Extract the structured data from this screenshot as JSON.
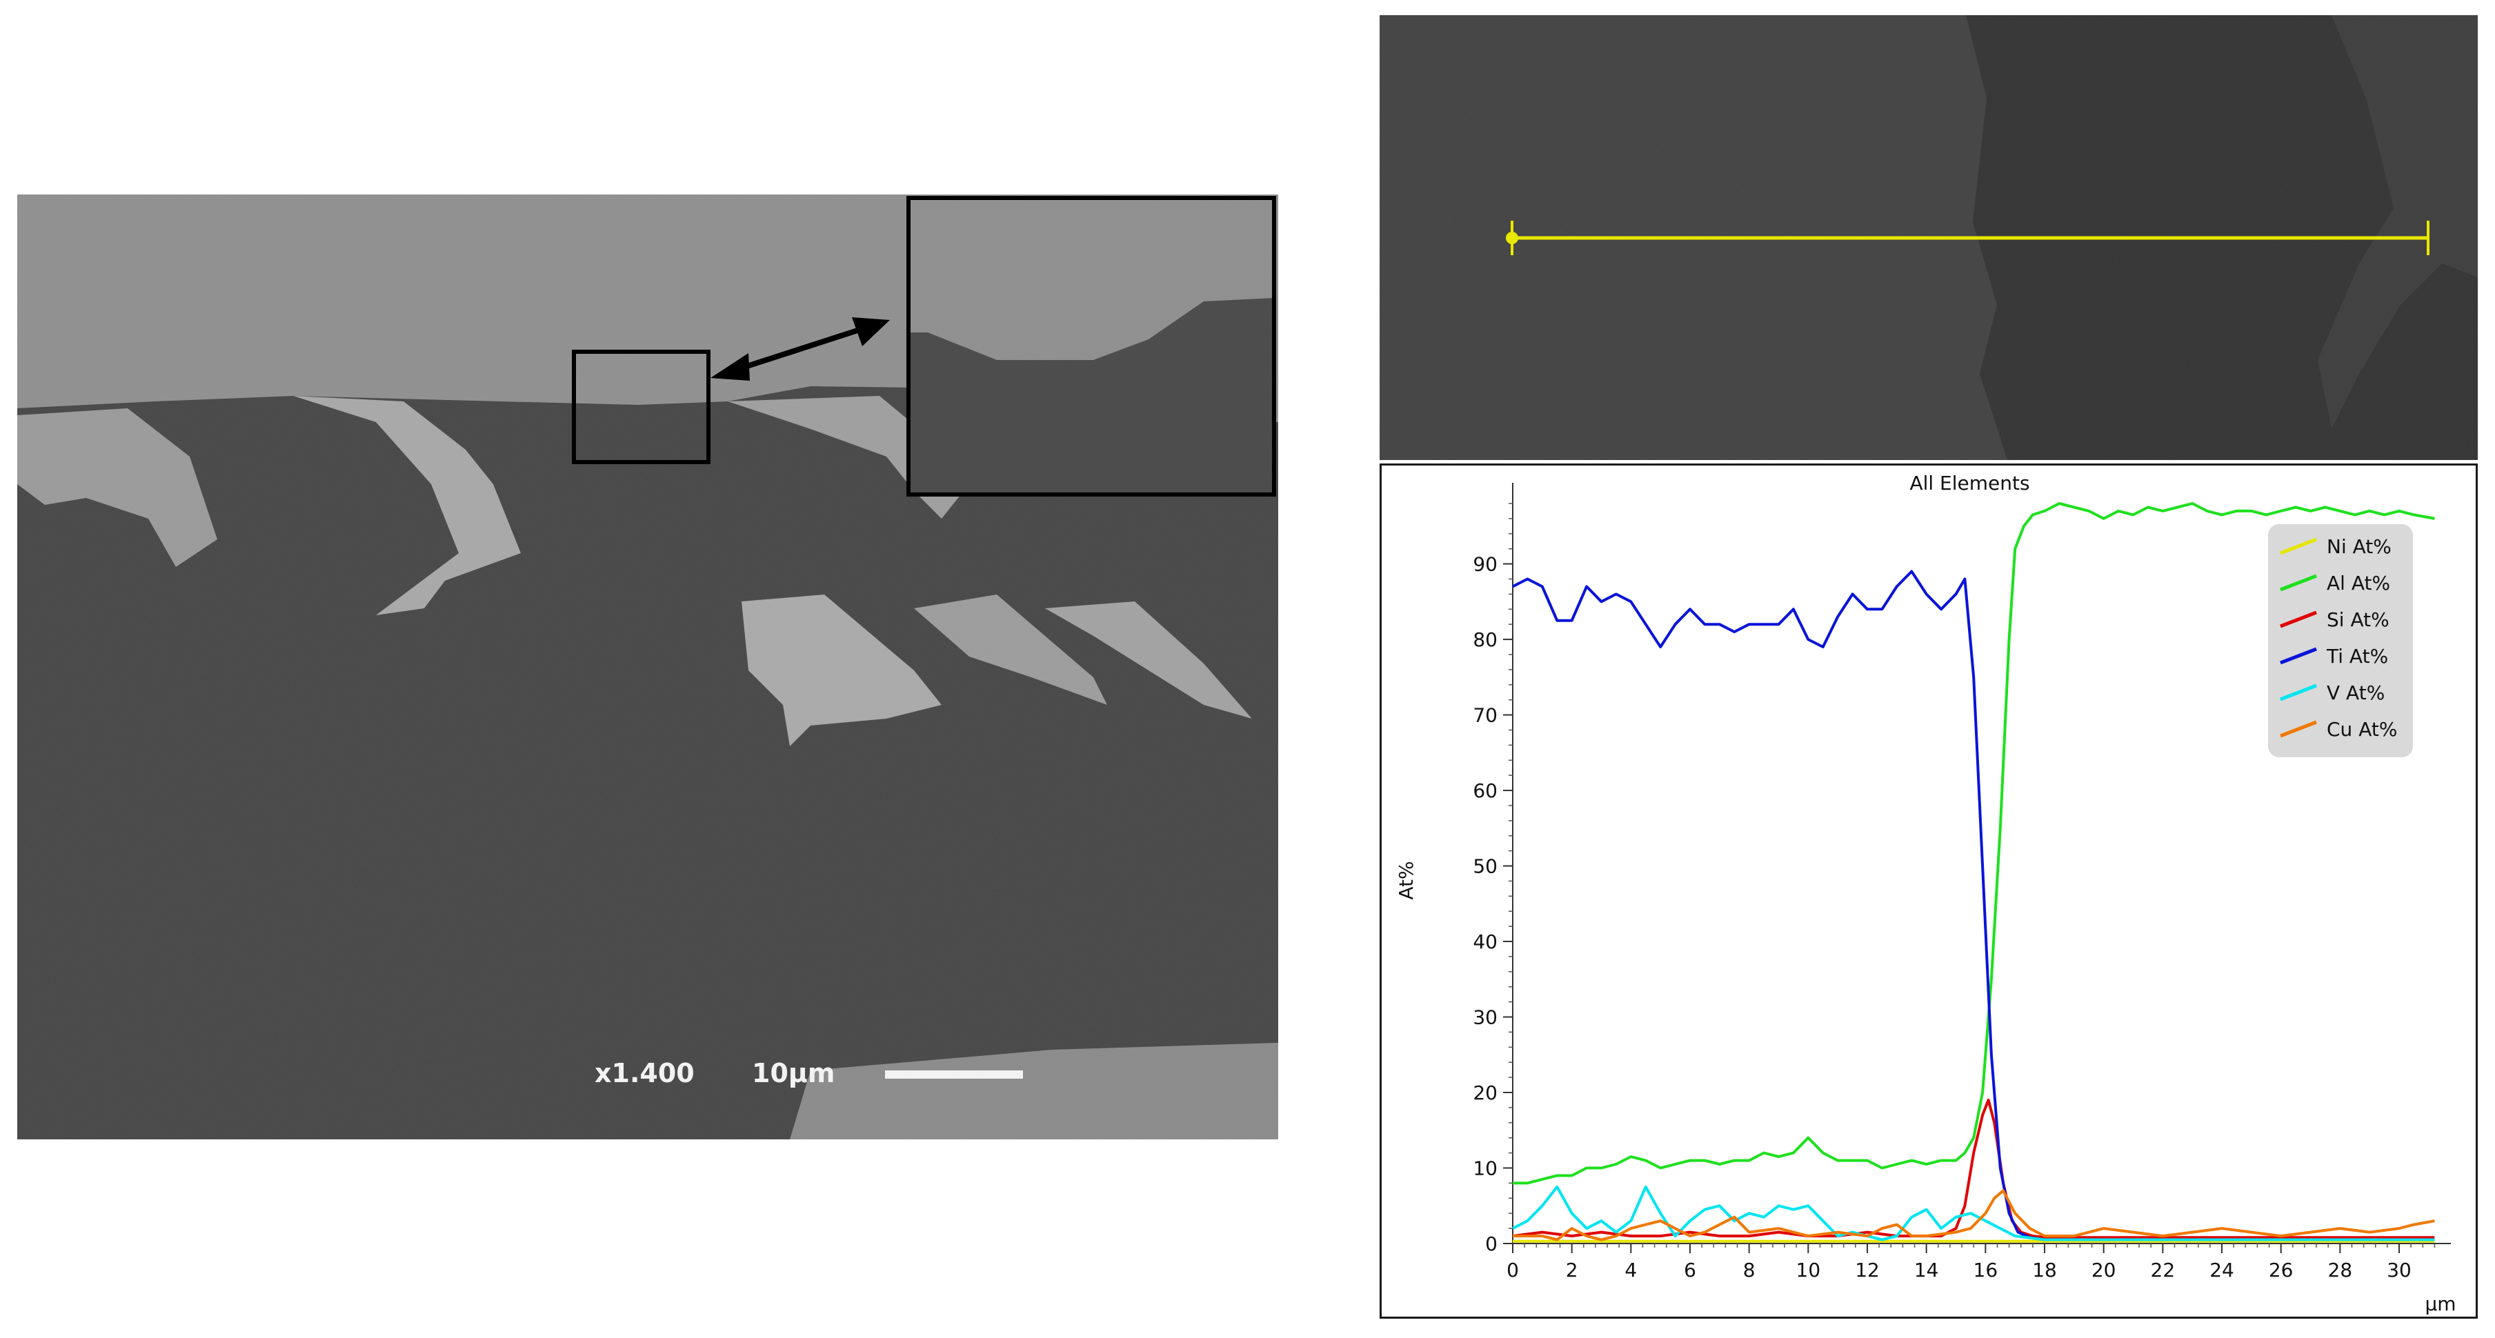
{
  "sem_image": {
    "magnification": "x1.400",
    "scale_label": "10µm"
  },
  "chart_data": {
    "type": "line",
    "title": "All Elements",
    "xlabel": "µm",
    "ylabel": "At%",
    "xlim": [
      0,
      31.4
    ],
    "ylim": [
      0,
      98
    ],
    "x_ticks": [
      0,
      2,
      4,
      6,
      8,
      10,
      12,
      14,
      16,
      18,
      20,
      22,
      24,
      26,
      28,
      30
    ],
    "y_ticks": [
      0,
      10,
      20,
      30,
      40,
      50,
      60,
      70,
      80,
      90
    ],
    "legend_position": "top-right",
    "series": [
      {
        "name": "Ni At%",
        "color": "#e6e600",
        "x": [
          0,
          2,
          4,
          6,
          8,
          10,
          12,
          14,
          15,
          16,
          17,
          18,
          20,
          22,
          24,
          26,
          28,
          30,
          31.2
        ],
        "y": [
          0.3,
          0.3,
          0.3,
          0.3,
          0.3,
          0.3,
          0.3,
          0.3,
          0.3,
          0.3,
          0.3,
          0.3,
          0.3,
          0.3,
          0.3,
          0.3,
          0.3,
          0.3,
          0.3
        ]
      },
      {
        "name": "Al At%",
        "color": "#1ee01e",
        "x": [
          0,
          0.5,
          1,
          1.5,
          2,
          2.5,
          3,
          3.5,
          4,
          4.5,
          5,
          5.5,
          6,
          6.5,
          7,
          7.5,
          8,
          8.5,
          9,
          9.5,
          10,
          10.5,
          11,
          11.5,
          12,
          12.5,
          13,
          13.5,
          14,
          14.5,
          15,
          15.3,
          15.6,
          15.9,
          16.2,
          16.5,
          16.8,
          17,
          17.3,
          17.6,
          18,
          18.5,
          19,
          19.5,
          20,
          20.5,
          21,
          21.5,
          22,
          22.5,
          23,
          23.5,
          24,
          24.5,
          25,
          25.5,
          26,
          26.5,
          27,
          27.5,
          28,
          28.5,
          29,
          29.5,
          30,
          30.5,
          31.2
        ],
        "y": [
          8,
          8,
          8.5,
          9,
          9,
          10,
          10,
          10.5,
          11.5,
          11,
          10,
          10.5,
          11,
          11,
          10.5,
          11,
          11,
          12,
          11.5,
          12,
          14,
          12,
          11,
          11,
          11,
          10,
          10.5,
          11,
          10.5,
          11,
          11,
          12,
          14,
          20,
          35,
          55,
          80,
          92,
          95,
          96.5,
          97,
          98,
          97.5,
          97,
          96,
          97,
          96.5,
          97.5,
          97,
          97.5,
          98,
          97,
          96.5,
          97,
          97,
          96.5,
          97,
          97.5,
          97,
          97.5,
          97,
          96.5,
          97,
          96.5,
          97,
          96.5,
          96
        ]
      },
      {
        "name": "Si At%",
        "color": "#e00000",
        "x": [
          0,
          1,
          2,
          3,
          4,
          5,
          6,
          7,
          8,
          9,
          10,
          11,
          12,
          13,
          14,
          14.5,
          15,
          15.3,
          15.6,
          15.9,
          16.1,
          16.3,
          16.6,
          16.9,
          17.2,
          17.6,
          18,
          20,
          22,
          24,
          26,
          28,
          30,
          31.2
        ],
        "y": [
          1,
          1.5,
          1,
          1.5,
          1,
          1,
          1.5,
          1,
          1,
          1.5,
          1,
          1,
          1.5,
          1,
          1,
          1,
          2,
          5,
          12,
          17,
          19,
          16,
          8,
          3,
          1.5,
          1,
          0.8,
          0.8,
          0.8,
          0.8,
          0.8,
          0.8,
          0.8,
          0.8
        ]
      },
      {
        "name": "Ti At%",
        "color": "#0a14d8",
        "x": [
          0,
          0.5,
          1,
          1.5,
          2,
          2.5,
          3,
          3.5,
          4,
          4.5,
          5,
          5.5,
          6,
          6.5,
          7,
          7.5,
          8,
          8.5,
          9,
          9.5,
          10,
          10.5,
          11,
          11.5,
          12,
          12.5,
          13,
          13.5,
          14,
          14.5,
          15,
          15.3,
          15.6,
          15.9,
          16.2,
          16.5,
          16.8,
          17.1,
          17.5,
          18,
          19,
          20,
          22,
          24,
          26,
          28,
          30,
          31.2
        ],
        "y": [
          87,
          88,
          87,
          82.5,
          82.5,
          87,
          85,
          86,
          85,
          82,
          79,
          82,
          84,
          82,
          82,
          81,
          82,
          82,
          82,
          84,
          80,
          79,
          83,
          86,
          84,
          84,
          87,
          89,
          86,
          84,
          86,
          88,
          75,
          50,
          25,
          10,
          4,
          1.5,
          0.8,
          0.5,
          0.5,
          0.5,
          0.5,
          0.5,
          0.5,
          0.5,
          0.5,
          0.5
        ]
      },
      {
        "name": "V At%",
        "color": "#00e5f0",
        "x": [
          0,
          0.5,
          1,
          1.5,
          2,
          2.5,
          3,
          3.5,
          4,
          4.5,
          5,
          5.5,
          6,
          6.5,
          7,
          7.5,
          8,
          8.5,
          9,
          9.5,
          10,
          10.5,
          11,
          11.5,
          12,
          12.5,
          13,
          13.5,
          14,
          14.5,
          15,
          15.5,
          16,
          16.5,
          17,
          18,
          20,
          22,
          24,
          26,
          28,
          30,
          31.2
        ],
        "y": [
          2,
          3,
          5,
          7.5,
          4,
          2,
          3,
          1.5,
          3,
          7.5,
          4,
          1,
          3,
          4.5,
          5,
          3,
          4,
          3.5,
          5,
          4.5,
          5,
          3,
          1,
          1.5,
          1,
          0.5,
          1,
          3.5,
          4.5,
          2,
          3.5,
          4,
          3,
          2,
          1,
          0.5,
          0.5,
          0.5,
          0.5,
          0.5,
          0.5,
          0.5,
          0.5
        ]
      },
      {
        "name": "Cu At%",
        "color": "#f07800",
        "x": [
          0,
          1,
          1.5,
          2,
          2.5,
          3,
          3.5,
          4,
          4.5,
          5,
          5.5,
          6,
          6.5,
          7,
          7.5,
          8,
          9,
          10,
          11,
          12,
          12.5,
          13,
          13.5,
          14,
          15,
          15.5,
          16,
          16.3,
          16.6,
          17,
          17.5,
          18,
          19,
          20,
          21,
          22,
          23,
          24,
          25,
          26,
          27,
          28,
          29,
          30,
          30.5,
          31.2
        ],
        "y": [
          1,
          1,
          0.5,
          2,
          1,
          0.5,
          1,
          2,
          2.5,
          3,
          2,
          1,
          1.5,
          2.5,
          3.5,
          1.5,
          2,
          1,
          1.5,
          1,
          2,
          2.5,
          1,
          1,
          1.5,
          2,
          4,
          6,
          7,
          4,
          2,
          1,
          1,
          2,
          1.5,
          1,
          1.5,
          2,
          1.5,
          1,
          1.5,
          2,
          1.5,
          2,
          2.5,
          3
        ]
      }
    ]
  }
}
